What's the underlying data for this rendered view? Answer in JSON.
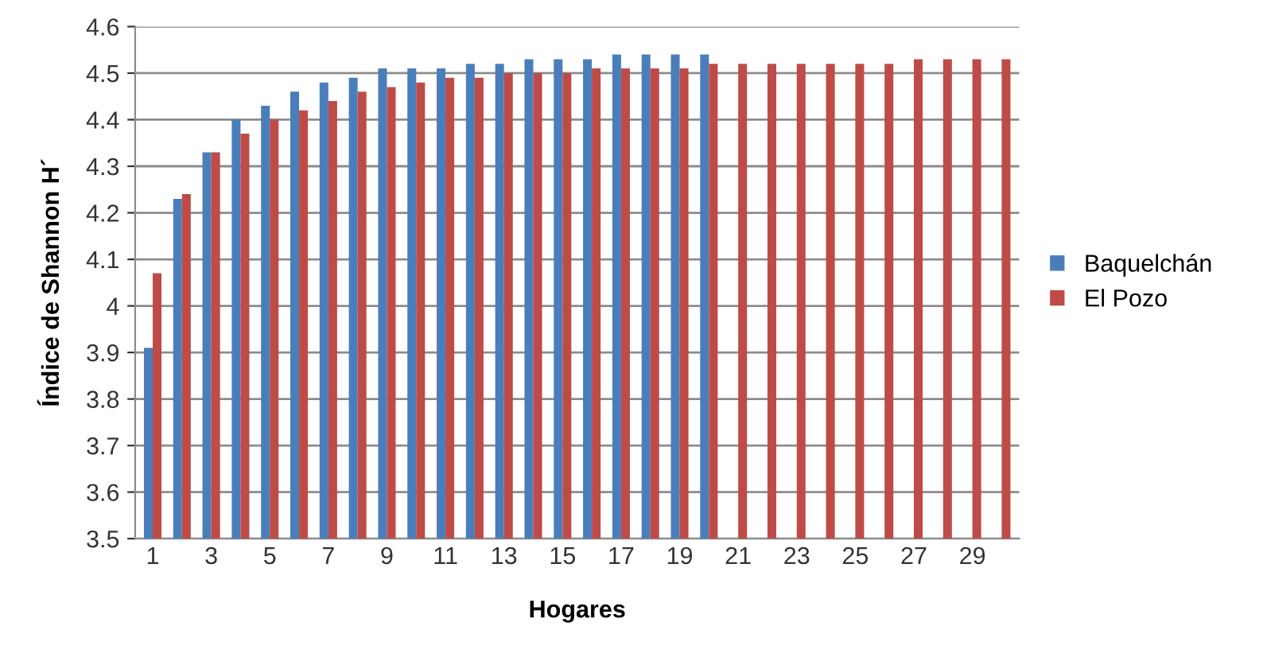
{
  "chart_data": {
    "type": "bar",
    "xlabel": "Hogares",
    "ylabel": "Índice de Shannon H´",
    "categories": [
      "1",
      null,
      "3",
      null,
      "5",
      null,
      "7",
      null,
      "9",
      null,
      "11",
      null,
      "13",
      null,
      "15",
      null,
      "17",
      null,
      "19",
      null,
      "21",
      null,
      "23",
      null,
      "25",
      null,
      "27",
      null,
      "29",
      null
    ],
    "series": [
      {
        "name": "Baquelchán",
        "color": "#4a7ebb",
        "values": [
          3.91,
          4.23,
          4.33,
          4.4,
          4.43,
          4.46,
          4.48,
          4.49,
          4.51,
          4.51,
          4.51,
          4.52,
          4.52,
          4.53,
          4.53,
          4.53,
          4.54,
          4.54,
          4.54,
          4.54,
          null,
          null,
          null,
          null,
          null,
          null,
          null,
          null,
          null,
          null
        ]
      },
      {
        "name": "El Pozo",
        "color": "#be4b48",
        "values": [
          4.07,
          4.24,
          4.33,
          4.37,
          4.4,
          4.42,
          4.44,
          4.46,
          4.47,
          4.48,
          4.49,
          4.49,
          4.5,
          4.5,
          4.5,
          4.51,
          4.51,
          4.51,
          4.51,
          4.52,
          4.52,
          4.52,
          4.52,
          4.52,
          4.52,
          4.52,
          4.53,
          4.53,
          4.53,
          4.53
        ]
      }
    ],
    "ylim": [
      3.5,
      4.6
    ],
    "yticks": [
      3.5,
      3.6,
      3.7,
      3.8,
      3.9,
      4,
      4.1,
      4.2,
      4.3,
      4.4,
      4.5,
      4.6
    ],
    "grid": "y",
    "legend": "right"
  }
}
